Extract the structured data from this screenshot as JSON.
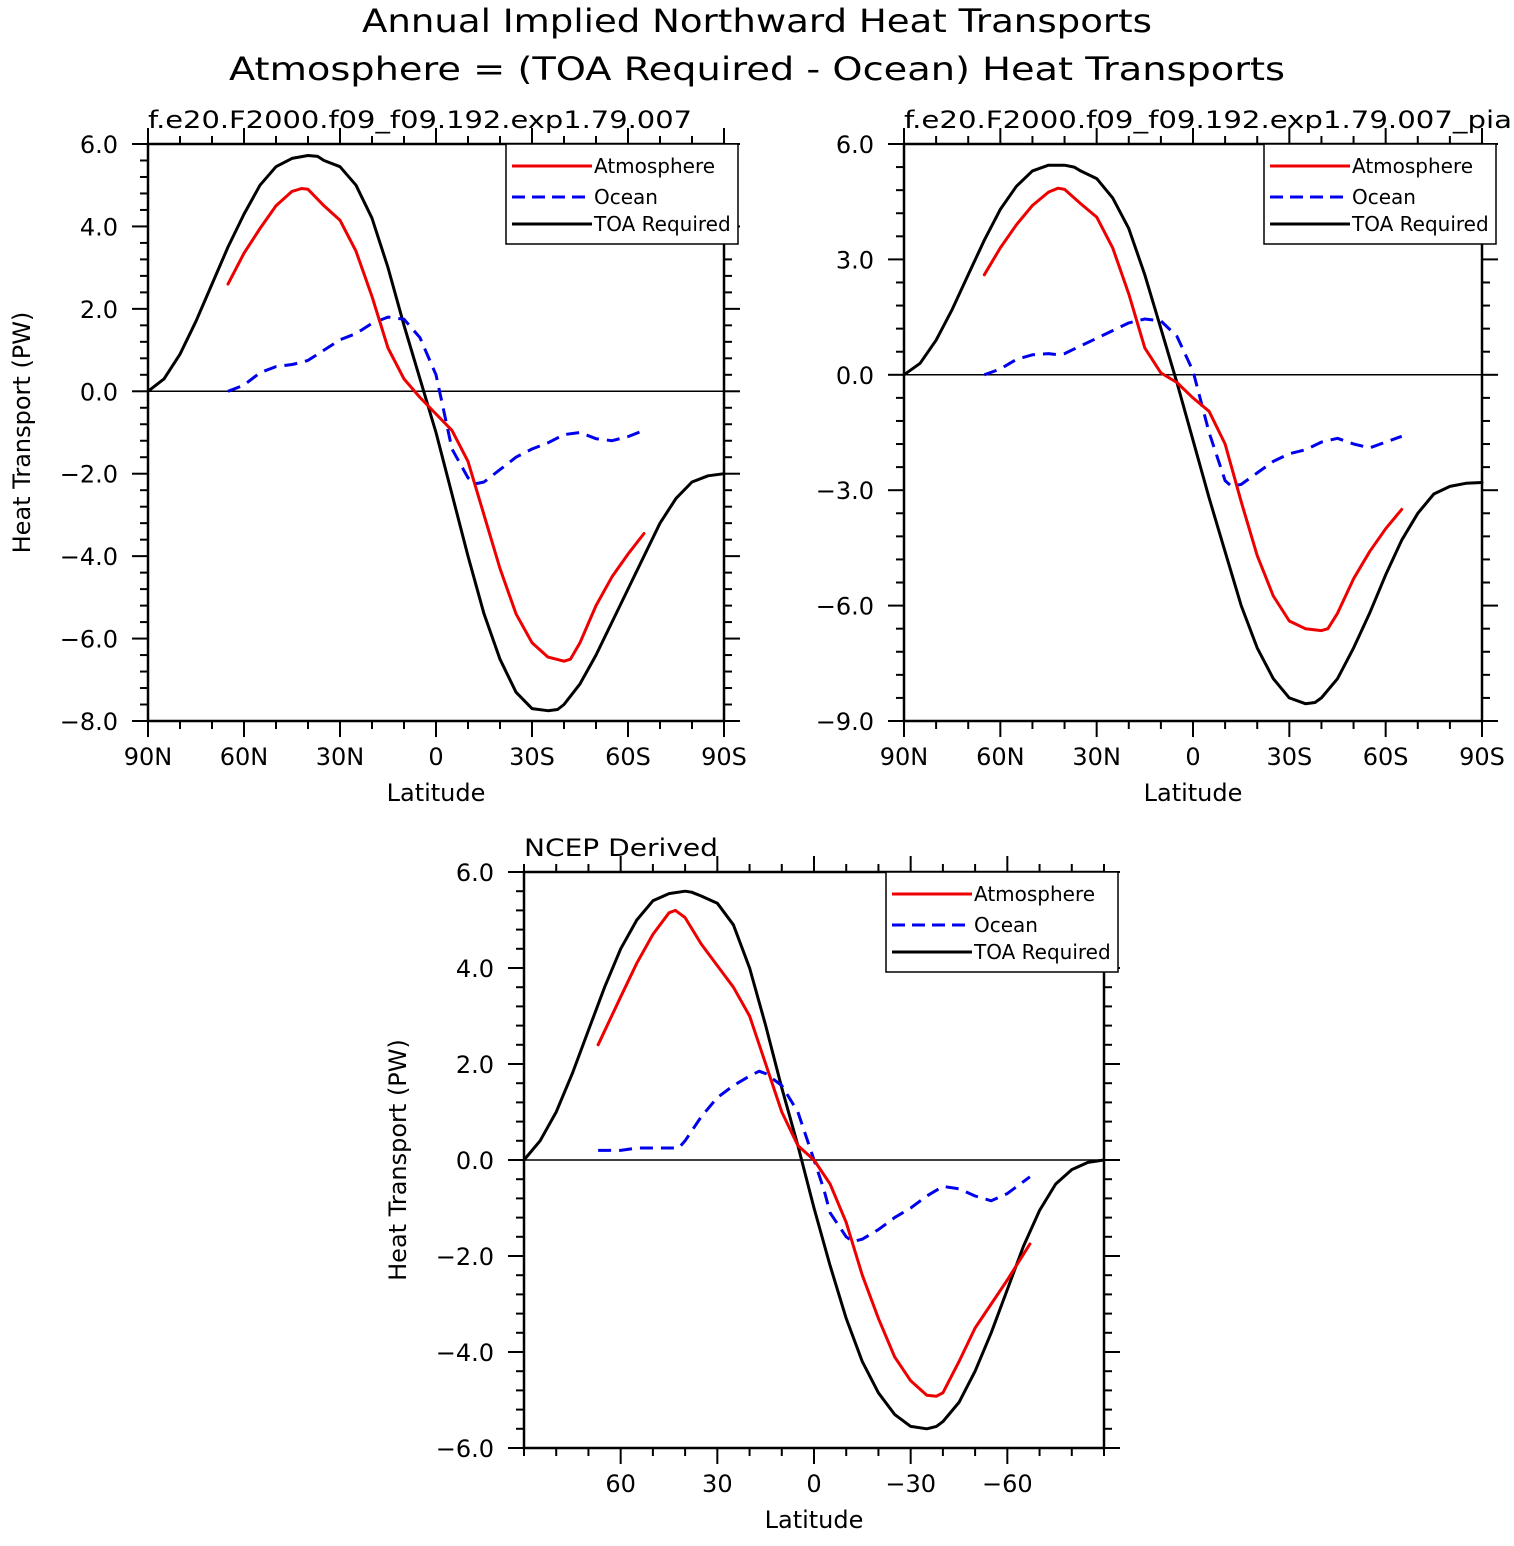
{
  "title_lines": [
    "Annual Implied Northward Heat Transports",
    "Atmosphere = (TOA Required - Ocean) Heat Transports"
  ],
  "legend": {
    "atmosphere": "Atmosphere",
    "ocean": "Ocean",
    "toa": "TOA Required"
  },
  "colors": {
    "atmosphere": "#ee0000",
    "ocean": "#0000ee",
    "toa": "#000000"
  },
  "chart_data": [
    {
      "type": "line",
      "title": "f.e20.F2000.f09_f09.192.exp1.79.007",
      "xlabel": "Latitude",
      "ylabel": "Heat Transport (PW)",
      "xlim": [
        90,
        -90
      ],
      "ylim": [
        -8,
        6
      ],
      "xticks": [
        90,
        60,
        30,
        0,
        -30,
        -60,
        -90
      ],
      "xtick_labels": [
        "90N",
        "60N",
        "30N",
        "0",
        "30S",
        "60S",
        "90S"
      ],
      "yticks": [
        -8,
        -6,
        -4,
        -2,
        0,
        2,
        4,
        6
      ],
      "ytick_labels": [
        "-8.0",
        "-6.0",
        "-4.0",
        "-2.0",
        "0.0",
        "2.0",
        "4.0",
        "6.0"
      ],
      "legend_position": "top-right",
      "series": [
        {
          "name": "TOA Required",
          "key": "toa",
          "x": [
            90,
            85,
            80,
            75,
            70,
            65,
            60,
            55,
            50,
            45,
            40,
            37,
            35,
            30,
            25,
            20,
            15,
            10,
            5,
            0,
            -5,
            -10,
            -15,
            -20,
            -25,
            -30,
            -35,
            -38,
            -40,
            -45,
            -50,
            -55,
            -60,
            -65,
            -70,
            -75,
            -80,
            -85,
            -90
          ],
          "y": [
            0,
            0.3,
            0.9,
            1.7,
            2.6,
            3.5,
            4.3,
            5.0,
            5.45,
            5.65,
            5.72,
            5.7,
            5.6,
            5.45,
            5.0,
            4.2,
            3.0,
            1.6,
            0.3,
            -1.0,
            -2.5,
            -4.0,
            -5.4,
            -6.5,
            -7.3,
            -7.7,
            -7.75,
            -7.72,
            -7.6,
            -7.1,
            -6.4,
            -5.6,
            -4.8,
            -4.0,
            -3.2,
            -2.6,
            -2.2,
            -2.05,
            -2.0
          ]
        },
        {
          "name": "Ocean",
          "key": "ocean",
          "x": [
            65,
            60,
            55,
            50,
            45,
            42,
            40,
            35,
            30,
            25,
            20,
            15,
            10,
            5,
            0,
            -5,
            -10,
            -12,
            -15,
            -20,
            -25,
            -30,
            -35,
            -40,
            -45,
            -50,
            -55,
            -60,
            -65
          ],
          "y": [
            0,
            0.15,
            0.45,
            0.6,
            0.65,
            0.7,
            0.75,
            1.0,
            1.25,
            1.4,
            1.65,
            1.8,
            1.75,
            1.3,
            0.4,
            -1.4,
            -2.1,
            -2.25,
            -2.2,
            -1.9,
            -1.6,
            -1.4,
            -1.25,
            -1.05,
            -1.0,
            -1.15,
            -1.2,
            -1.1,
            -0.95
          ]
        },
        {
          "name": "Atmosphere",
          "key": "atmosphere",
          "x": [
            65,
            60,
            55,
            50,
            45,
            42,
            40,
            35,
            30,
            25,
            20,
            15,
            10,
            5,
            0,
            -5,
            -10,
            -15,
            -20,
            -25,
            -30,
            -35,
            -40,
            -42,
            -45,
            -50,
            -55,
            -60,
            -65
          ],
          "y": [
            2.6,
            3.35,
            3.95,
            4.5,
            4.85,
            4.92,
            4.9,
            4.5,
            4.15,
            3.4,
            2.3,
            1.05,
            0.3,
            -0.15,
            -0.55,
            -0.95,
            -1.7,
            -3.0,
            -4.3,
            -5.4,
            -6.1,
            -6.45,
            -6.55,
            -6.5,
            -6.1,
            -5.2,
            -4.5,
            -3.95,
            -3.45
          ]
        }
      ]
    },
    {
      "type": "line",
      "title": "f.e20.F2000.f09_f09.192.exp1.79.007_pia",
      "xlabel": "Latitude",
      "ylabel": "",
      "xlim": [
        90,
        -90
      ],
      "ylim": [
        -9,
        6
      ],
      "xticks": [
        90,
        60,
        30,
        0,
        -30,
        -60,
        -90
      ],
      "xtick_labels": [
        "90N",
        "60N",
        "30N",
        "0",
        "30S",
        "60S",
        "90S"
      ],
      "yticks": [
        -9,
        -6,
        -3,
        0,
        3,
        6
      ],
      "ytick_labels": [
        "-9.0",
        "-6.0",
        "-3.0",
        "0.0",
        "3.0",
        "6.0"
      ],
      "legend_position": "top-right",
      "series": [
        {
          "name": "TOA Required",
          "key": "toa",
          "x": [
            90,
            85,
            80,
            75,
            70,
            65,
            60,
            55,
            50,
            45,
            40,
            37,
            35,
            30,
            25,
            20,
            15,
            10,
            5,
            0,
            -5,
            -10,
            -15,
            -20,
            -25,
            -30,
            -35,
            -38,
            -40,
            -45,
            -50,
            -55,
            -60,
            -65,
            -70,
            -75,
            -80,
            -85,
            -90
          ],
          "y": [
            0,
            0.3,
            0.9,
            1.7,
            2.6,
            3.5,
            4.3,
            4.9,
            5.3,
            5.45,
            5.45,
            5.4,
            5.3,
            5.1,
            4.6,
            3.8,
            2.6,
            1.2,
            -0.2,
            -1.7,
            -3.2,
            -4.6,
            -6.0,
            -7.1,
            -7.9,
            -8.4,
            -8.55,
            -8.52,
            -8.4,
            -7.9,
            -7.1,
            -6.2,
            -5.2,
            -4.3,
            -3.6,
            -3.1,
            -2.9,
            -2.82,
            -2.8
          ]
        },
        {
          "name": "Ocean",
          "key": "ocean",
          "x": [
            65,
            60,
            55,
            50,
            45,
            42,
            40,
            35,
            30,
            25,
            20,
            15,
            10,
            5,
            0,
            -5,
            -10,
            -12,
            -15,
            -20,
            -25,
            -30,
            -35,
            -40,
            -45,
            -50,
            -55,
            -60,
            -65
          ],
          "y": [
            0,
            0.15,
            0.4,
            0.52,
            0.55,
            0.52,
            0.55,
            0.75,
            0.95,
            1.15,
            1.35,
            1.45,
            1.4,
            1.0,
            0.1,
            -1.5,
            -2.75,
            -2.9,
            -2.85,
            -2.55,
            -2.25,
            -2.05,
            -1.95,
            -1.75,
            -1.65,
            -1.8,
            -1.9,
            -1.75,
            -1.6
          ]
        },
        {
          "name": "Atmosphere",
          "key": "atmosphere",
          "x": [
            65,
            60,
            55,
            50,
            45,
            42,
            40,
            35,
            30,
            25,
            20,
            15,
            10,
            5,
            0,
            -5,
            -10,
            -15,
            -20,
            -25,
            -30,
            -35,
            -40,
            -42,
            -45,
            -50,
            -55,
            -60,
            -65
          ],
          "y": [
            2.6,
            3.3,
            3.9,
            4.4,
            4.75,
            4.85,
            4.82,
            4.45,
            4.1,
            3.3,
            2.1,
            0.7,
            0.05,
            -0.2,
            -0.6,
            -0.95,
            -1.8,
            -3.3,
            -4.7,
            -5.75,
            -6.4,
            -6.6,
            -6.65,
            -6.6,
            -6.2,
            -5.3,
            -4.6,
            -4.0,
            -3.5
          ]
        }
      ]
    },
    {
      "type": "line",
      "title": "NCEP Derived",
      "xlabel": "Latitude",
      "ylabel": "Heat Transport (PW)",
      "xlim": [
        90,
        -90
      ],
      "ylim": [
        -6,
        6
      ],
      "xticks": [
        60,
        30,
        0,
        -30,
        -60
      ],
      "xtick_labels": [
        "60",
        "30",
        "0",
        "-30",
        "-60"
      ],
      "yticks": [
        -6,
        -4,
        -2,
        0,
        2,
        4,
        6
      ],
      "ytick_labels": [
        "-6.0",
        "-4.0",
        "-2.0",
        "0.0",
        "2.0",
        "4.0",
        "6.0"
      ],
      "legend_position": "top-right",
      "series": [
        {
          "name": "TOA Required",
          "key": "toa",
          "x": [
            90,
            85,
            80,
            75,
            70,
            65,
            60,
            55,
            50,
            45,
            40,
            38,
            35,
            30,
            25,
            20,
            15,
            10,
            5,
            0,
            -5,
            -10,
            -15,
            -20,
            -25,
            -30,
            -35,
            -38,
            -40,
            -45,
            -50,
            -55,
            -60,
            -65,
            -70,
            -75,
            -80,
            -85,
            -90
          ],
          "y": [
            0,
            0.4,
            1.0,
            1.8,
            2.7,
            3.6,
            4.4,
            5.0,
            5.4,
            5.55,
            5.6,
            5.58,
            5.5,
            5.35,
            4.9,
            4.0,
            2.8,
            1.5,
            0.3,
            -1.0,
            -2.2,
            -3.3,
            -4.2,
            -4.85,
            -5.3,
            -5.55,
            -5.6,
            -5.55,
            -5.45,
            -5.05,
            -4.4,
            -3.6,
            -2.7,
            -1.8,
            -1.05,
            -0.5,
            -0.2,
            -0.05,
            0
          ]
        },
        {
          "name": "Ocean",
          "key": "ocean",
          "x": [
            67,
            60,
            55,
            50,
            45,
            42,
            40,
            35,
            30,
            25,
            20,
            17,
            15,
            10,
            5,
            0,
            -3,
            -5,
            -10,
            -12,
            -15,
            -20,
            -25,
            -30,
            -35,
            -40,
            -45,
            -50,
            -55,
            -60,
            -67
          ],
          "y": [
            0.2,
            0.2,
            0.25,
            0.25,
            0.25,
            0.25,
            0.4,
            0.9,
            1.3,
            1.55,
            1.75,
            1.85,
            1.8,
            1.55,
            1.0,
            0.0,
            -0.6,
            -1.1,
            -1.6,
            -1.7,
            -1.65,
            -1.45,
            -1.2,
            -1.0,
            -0.75,
            -0.55,
            -0.6,
            -0.75,
            -0.85,
            -0.7,
            -0.35
          ]
        },
        {
          "name": "Atmosphere",
          "key": "atmosphere",
          "x": [
            67,
            60,
            55,
            50,
            45,
            43,
            40,
            35,
            30,
            25,
            20,
            15,
            10,
            5,
            0,
            -5,
            -10,
            -15,
            -20,
            -25,
            -30,
            -35,
            -38,
            -40,
            -45,
            -50,
            -55,
            -60,
            -67
          ],
          "y": [
            2.4,
            3.4,
            4.1,
            4.7,
            5.15,
            5.2,
            5.05,
            4.5,
            4.05,
            3.6,
            3.0,
            2.0,
            1.0,
            0.3,
            0.0,
            -0.5,
            -1.3,
            -2.4,
            -3.3,
            -4.1,
            -4.6,
            -4.9,
            -4.92,
            -4.85,
            -4.2,
            -3.5,
            -3.0,
            -2.5,
            -1.75
          ]
        }
      ]
    }
  ]
}
